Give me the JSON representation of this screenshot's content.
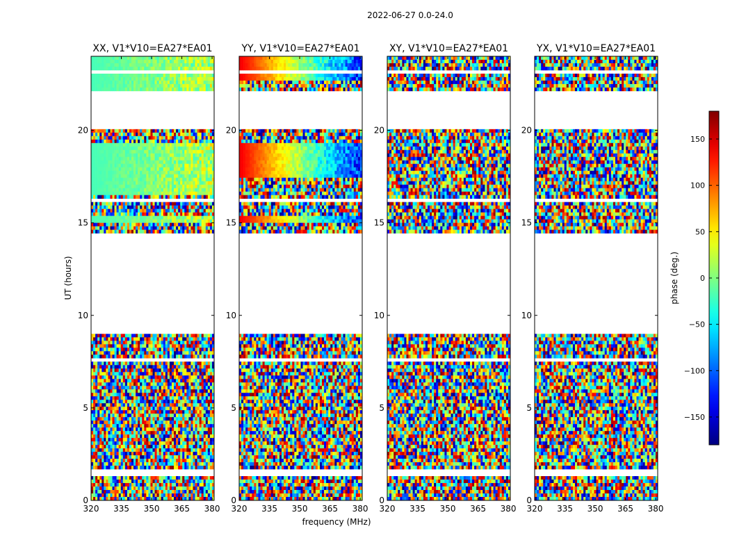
{
  "figure": {
    "suptitle": "2022-06-27 0.0-24.0"
  },
  "colorbar": {
    "label": "phase (deg.)",
    "ticks": [
      150,
      100,
      50,
      0,
      -50,
      -100,
      -150
    ],
    "tick_labels": [
      "150",
      "100",
      "50",
      "0",
      "−50",
      "−100",
      "−150"
    ],
    "range": [
      -180,
      180
    ],
    "colormap": "jet",
    "colors": [
      "#00007f",
      "#0000ff",
      "#007fff",
      "#00ffff",
      "#7fff7f",
      "#ffff00",
      "#ff7f00",
      "#ff0000",
      "#7f0000"
    ]
  },
  "chart_data": {
    "type": "heatmap",
    "xlabel": "frequency (MHz)",
    "ylabel": "UT (hours)",
    "xlim": [
      320,
      381
    ],
    "ylim": [
      0,
      24
    ],
    "x_ticks": [
      320,
      335,
      350,
      365,
      380
    ],
    "x_tick_labels": [
      "320",
      "335",
      "350",
      "365",
      "380"
    ],
    "y_ticks": [
      0,
      5,
      10,
      15,
      20
    ],
    "y_tick_labels": [
      "0",
      "5",
      "10",
      "15",
      "20"
    ],
    "value_range": [
      -180,
      180
    ],
    "value_unit": "deg",
    "flagged_ut_ranges": [
      [
        1.4,
        1.7
      ],
      [
        2.05,
        2.1
      ],
      [
        3.55,
        3.65
      ],
      [
        7.45,
        7.65
      ],
      [
        9.0,
        14.5
      ],
      [
        15.7,
        15.8
      ],
      [
        16.2,
        16.3
      ],
      [
        18.7,
        18.8
      ],
      [
        20.05,
        22.1
      ],
      [
        22.6,
        22.75
      ],
      [
        23.1,
        23.2
      ]
    ],
    "panels": [
      {
        "title": "XX, V1*V10=EA27*EA01",
        "structure": "coherent",
        "coherent_ut_ranges": [
          [
            15.0,
            15.3
          ],
          [
            16.5,
            19.3
          ],
          [
            22.1,
            24.0
          ]
        ],
        "coherent_phase": {
          "start": -20,
          "end": 20
        }
      },
      {
        "title": "YY, V1*V10=EA27*EA01",
        "structure": "coherent",
        "coherent_ut_ranges": [
          [
            15.0,
            15.3
          ],
          [
            17.5,
            19.3
          ],
          [
            22.7,
            24.0
          ]
        ],
        "coherent_phase": {
          "start": 140,
          "end": -120
        }
      },
      {
        "title": "XY, V1*V10=EA27*EA01",
        "structure": "noise"
      },
      {
        "title": "YX, V1*V10=EA27*EA01",
        "structure": "noise"
      }
    ]
  }
}
